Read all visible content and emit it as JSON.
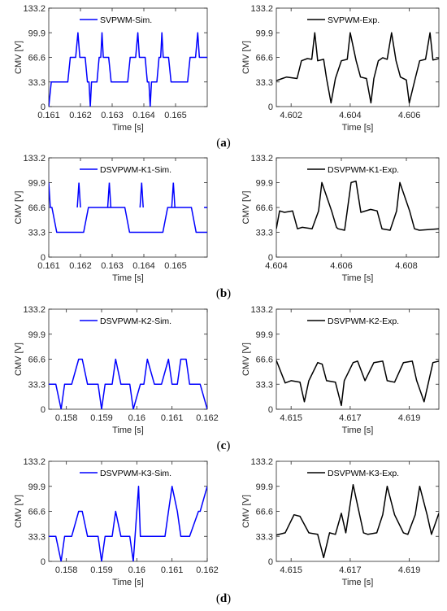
{
  "chart_data": [
    {
      "type": "line",
      "panel": "a",
      "side": "sim",
      "legend": "SVPWM-Sim.",
      "color": "#0000ff",
      "xlabel": "Time [s]",
      "ylabel": "CMV [V]",
      "xlim": [
        0.161,
        0.166
      ],
      "ylim": [
        0,
        133.2
      ],
      "xticks": [
        0.161,
        0.162,
        0.163,
        0.164,
        0.165
      ],
      "xticklabels": [
        "0.161",
        "0.162",
        "0.163",
        "0.164",
        "0.165"
      ],
      "yticks": [
        0,
        33.3,
        66.6,
        99.9,
        133.2
      ],
      "yticklabels": [
        "0",
        "33.3",
        "66.6",
        "99.9",
        "133.2"
      ],
      "x": [
        0.161,
        0.16108,
        0.16116,
        0.1616,
        0.16168,
        0.16185,
        0.16192,
        0.16198,
        0.16215,
        0.16222,
        0.16227,
        0.16231,
        0.16235,
        0.16252,
        0.16259,
        0.16264,
        0.16268,
        0.16272,
        0.16289,
        0.16297,
        0.16305,
        0.16349,
        0.16357,
        0.16374,
        0.16381,
        0.16386,
        0.16404,
        0.16411,
        0.16416,
        0.1642,
        0.16424,
        0.16441,
        0.16448,
        0.16453,
        0.16457,
        0.16461,
        0.16478,
        0.16486,
        0.16494,
        0.16538,
        0.16546,
        0.16563,
        0.1657,
        0.16575,
        0.166
      ],
      "y": [
        0,
        33.3,
        33.3,
        33.3,
        66.6,
        66.6,
        99.9,
        66.6,
        66.6,
        33.3,
        33.3,
        0,
        33.3,
        33.3,
        66.6,
        66.6,
        99.9,
        66.6,
        66.6,
        33.3,
        33.3,
        33.3,
        66.6,
        66.6,
        99.9,
        66.6,
        66.6,
        33.3,
        33.3,
        0,
        33.3,
        33.3,
        66.6,
        66.6,
        99.9,
        66.6,
        66.6,
        33.3,
        33.3,
        33.3,
        66.6,
        66.6,
        99.9,
        66.6,
        66.6
      ]
    },
    {
      "type": "line",
      "panel": "a",
      "side": "exp",
      "legend": "SVPWM-Exp.",
      "color": "#000000",
      "xlabel": "Time [s]",
      "ylabel": "CMV [V]",
      "xlim": [
        4.6015,
        4.607
      ],
      "ylim": [
        0,
        133.2
      ],
      "xticks": [
        4.602,
        4.604,
        4.606
      ],
      "xticklabels": [
        "4.602",
        "4.604",
        "4.606"
      ],
      "yticks": [
        0,
        33.3,
        66.6,
        99.9,
        133.2
      ],
      "yticklabels": [
        "0",
        "33.3",
        "66.6",
        "99.9",
        "133.2"
      ],
      "x": [
        4.6015,
        4.6017,
        4.60185,
        4.6022,
        4.60235,
        4.60255,
        4.6027,
        4.6028,
        4.6029,
        4.6031,
        4.6032,
        4.60335,
        4.6035,
        4.6037,
        4.6039,
        4.604,
        4.6042,
        4.60435,
        4.60455,
        4.6047,
        4.6048,
        4.60495,
        4.6051,
        4.60525,
        4.6054,
        4.60555,
        4.6057,
        4.6059,
        4.606,
        4.6062,
        4.60635,
        4.60655,
        4.6067,
        4.6068,
        4.607
      ],
      "y": [
        35,
        38,
        40,
        38,
        62,
        65,
        64,
        100,
        62,
        64,
        38,
        5,
        38,
        62,
        64,
        100,
        62,
        40,
        38,
        5,
        38,
        62,
        66,
        64,
        100,
        62,
        40,
        36,
        5,
        38,
        62,
        64,
        100,
        63,
        65
      ]
    },
    {
      "type": "line",
      "panel": "b",
      "side": "sim",
      "legend": "DSVPWM-K1-Sim.",
      "color": "#0000ff",
      "xlabel": "Time [s]",
      "ylabel": "CMV [V]",
      "xlim": [
        0.161,
        0.166
      ],
      "ylim": [
        0,
        133.2
      ],
      "xticks": [
        0.161,
        0.162,
        0.163,
        0.164,
        0.165
      ],
      "xticklabels": [
        "0.161",
        "0.162",
        "0.163",
        "0.164",
        "0.165"
      ],
      "yticks": [
        0,
        33.3,
        66.6,
        99.9,
        133.2
      ],
      "yticklabels": [
        "0",
        "33.3",
        "66.6",
        "99.9",
        "133.2"
      ],
      "x": [
        0.161,
        0.16105,
        0.1611,
        0.16125,
        0.1621,
        0.16225,
        0.1634,
        0.16355,
        0.1646,
        0.16475,
        0.1655,
        0.16565,
        0.166
      ],
      "y": [
        99.9,
        66.6,
        66.6,
        33.3,
        33.3,
        66.6,
        66.6,
        33.3,
        33.3,
        66.6,
        66.6,
        33.3,
        33.3
      ],
      "spikes": [
        {
          "x": 0.16195,
          "y": 99.9
        },
        {
          "x": 0.16291,
          "y": 99.9
        },
        {
          "x": 0.16393,
          "y": 99.9
        },
        {
          "x": 0.16493,
          "y": 99.9
        },
        {
          "x": 0.16595,
          "y": 66.6
        }
      ]
    },
    {
      "type": "line",
      "panel": "b",
      "side": "exp",
      "legend": "DSVPWM-K1-Exp.",
      "color": "#000000",
      "xlabel": "Time [s]",
      "ylabel": "CMV [V]",
      "xlim": [
        4.604,
        4.609
      ],
      "ylim": [
        0,
        133.2
      ],
      "xticks": [
        4.604,
        4.606,
        4.608
      ],
      "xticklabels": [
        "4.604",
        "4.606",
        "4.608"
      ],
      "yticks": [
        0,
        33.3,
        66.6,
        99.9,
        133.2
      ],
      "yticklabels": [
        "0",
        "33.3",
        "66.6",
        "99.9",
        "133.2"
      ],
      "x": [
        4.604,
        4.6041,
        4.60425,
        4.6045,
        4.60465,
        4.6048,
        4.6051,
        4.6053,
        4.6054,
        4.6057,
        4.60585,
        4.6059,
        4.6061,
        4.6063,
        4.60645,
        4.6066,
        4.6069,
        4.6071,
        4.60725,
        4.6075,
        4.6077,
        4.6078,
        4.6081,
        4.60825,
        4.6084,
        4.609
      ],
      "y": [
        38,
        62,
        60,
        62,
        38,
        40,
        38,
        62,
        100,
        62,
        40,
        38,
        36,
        100,
        102,
        60,
        64,
        62,
        38,
        36,
        62,
        100,
        62,
        38,
        36,
        38
      ]
    },
    {
      "type": "line",
      "panel": "c",
      "side": "sim",
      "legend": "DSVPWM-K2-Sim.",
      "color": "#0000ff",
      "xlabel": "Time [s]",
      "ylabel": "CMV [V]",
      "xlim": [
        0.1575,
        0.162
      ],
      "ylim": [
        0,
        133.2
      ],
      "xticks": [
        0.158,
        0.159,
        0.16,
        0.161,
        0.162
      ],
      "xticklabels": [
        "0.158",
        "0.159",
        "0.16",
        "0.161",
        "0.162"
      ],
      "yticks": [
        0,
        33.3,
        66.6,
        99.9,
        133.2
      ],
      "yticklabels": [
        "0",
        "33.3",
        "66.6",
        "99.9",
        "133.2"
      ],
      "x": [
        0.1575,
        0.1577,
        0.15785,
        0.15795,
        0.15815,
        0.15835,
        0.15845,
        0.1586,
        0.1587,
        0.1589,
        0.159,
        0.1591,
        0.1593,
        0.1594,
        0.15955,
        0.15965,
        0.1598,
        0.1599,
        0.1601,
        0.1602,
        0.1603,
        0.1605,
        0.1606,
        0.1607,
        0.1609,
        0.161,
        0.16115,
        0.16125,
        0.1614,
        0.1615,
        0.1617,
        0.1618,
        0.162
      ],
      "y": [
        33.3,
        33.3,
        0,
        33.3,
        33.3,
        66.6,
        66.6,
        33.3,
        33.3,
        33.3,
        0,
        33.3,
        33.3,
        66.6,
        33.3,
        33.3,
        33.3,
        0,
        33.3,
        33.3,
        66.6,
        33.3,
        33.3,
        33.3,
        66.6,
        33.3,
        33.3,
        66.6,
        66.6,
        33.3,
        33.3,
        33.3,
        0
      ]
    },
    {
      "type": "line",
      "panel": "c",
      "side": "exp",
      "legend": "DSVPWM-K2-Exp.",
      "color": "#000000",
      "xlabel": "Time [s]",
      "ylabel": "CMV [V]",
      "xlim": [
        4.6145,
        4.62
      ],
      "ylim": [
        0,
        133.2
      ],
      "xticks": [
        4.615,
        4.617,
        4.619
      ],
      "xticklabels": [
        "4.615",
        "4.617",
        "4.619"
      ],
      "yticks": [
        0,
        33.3,
        66.6,
        99.9,
        133.2
      ],
      "yticklabels": [
        "0",
        "33.3",
        "66.6",
        "99.9",
        "133.2"
      ],
      "x": [
        4.6145,
        4.6148,
        4.615,
        4.6153,
        4.61545,
        4.6156,
        4.6159,
        4.61605,
        4.6162,
        4.6165,
        4.6167,
        4.6168,
        4.6171,
        4.61725,
        4.6175,
        4.6178,
        4.6181,
        4.61825,
        4.6185,
        4.6188,
        4.6191,
        4.61925,
        4.6195,
        4.6198,
        4.62
      ],
      "y": [
        65,
        35,
        38,
        36,
        10,
        38,
        62,
        60,
        38,
        36,
        5,
        38,
        62,
        64,
        38,
        62,
        64,
        38,
        36,
        62,
        64,
        38,
        10,
        62,
        64
      ]
    },
    {
      "type": "line",
      "panel": "d",
      "side": "sim",
      "legend": "DSVPWM-K3-Sim.",
      "color": "#0000ff",
      "xlabel": "Time [s]",
      "ylabel": "CMV [V]",
      "xlim": [
        0.1575,
        0.162
      ],
      "ylim": [
        0,
        133.2
      ],
      "xticks": [
        0.158,
        0.159,
        0.16,
        0.161,
        0.162
      ],
      "xticklabels": [
        "0.158",
        "0.159",
        "0.16",
        "0.161",
        "0.162"
      ],
      "yticks": [
        0,
        33.3,
        66.6,
        99.9,
        133.2
      ],
      "yticklabels": [
        "0",
        "33.3",
        "66.6",
        "99.9",
        "133.2"
      ],
      "x": [
        0.1575,
        0.1577,
        0.15785,
        0.15795,
        0.15815,
        0.15835,
        0.15845,
        0.1586,
        0.1587,
        0.1589,
        0.159,
        0.1591,
        0.1593,
        0.1594,
        0.15955,
        0.15965,
        0.1598,
        0.1599,
        0.16005,
        0.1601,
        0.1602,
        0.16045,
        0.16055,
        0.1608,
        0.1609,
        0.161,
        0.16115,
        0.16125,
        0.1614,
        0.1615,
        0.16175,
        0.1618,
        0.162
      ],
      "y": [
        33.3,
        33.3,
        0,
        33.3,
        33.3,
        66.6,
        66.6,
        33.3,
        33.3,
        33.3,
        0,
        33.3,
        33.3,
        66.6,
        33.3,
        33.3,
        33.3,
        0,
        99.9,
        33.3,
        33.3,
        33.3,
        33.3,
        33.3,
        66.6,
        99.9,
        66.6,
        33.3,
        33.3,
        33.3,
        66.6,
        66.6,
        99.9
      ]
    },
    {
      "type": "line",
      "panel": "d",
      "side": "exp",
      "legend": "DSVPWM-K3-Exp.",
      "color": "#000000",
      "xlabel": "Time [s]",
      "ylabel": "CMV [V]",
      "xlim": [
        4.6145,
        4.62
      ],
      "ylim": [
        0,
        133.2
      ],
      "xticks": [
        4.615,
        4.617,
        4.619
      ],
      "xticklabels": [
        "4.615",
        "4.617",
        "4.619"
      ],
      "yticks": [
        0,
        33.3,
        66.6,
        99.9,
        133.2
      ],
      "yticklabels": [
        "0",
        "33.3",
        "66.6",
        "99.9",
        "133.2"
      ],
      "x": [
        4.6145,
        4.6148,
        4.6151,
        4.6153,
        4.6156,
        4.6159,
        4.6161,
        4.6163,
        4.6165,
        4.6167,
        4.61685,
        4.6171,
        4.61745,
        4.6176,
        4.6179,
        4.6181,
        4.61825,
        4.6185,
        4.6188,
        4.61895,
        4.6192,
        4.61935,
        4.6196,
        4.61975,
        4.62
      ],
      "y": [
        35,
        38,
        62,
        60,
        38,
        36,
        5,
        38,
        36,
        64,
        38,
        102,
        38,
        36,
        38,
        62,
        100,
        62,
        38,
        36,
        62,
        100,
        62,
        36,
        64
      ]
    }
  ],
  "captions": [
    {
      "open": "(",
      "letter": "a",
      "close": ")"
    },
    {
      "open": "(",
      "letter": "b",
      "close": ")"
    },
    {
      "open": "(",
      "letter": "c",
      "close": ")"
    },
    {
      "open": "(",
      "letter": "d",
      "close": ")"
    }
  ]
}
